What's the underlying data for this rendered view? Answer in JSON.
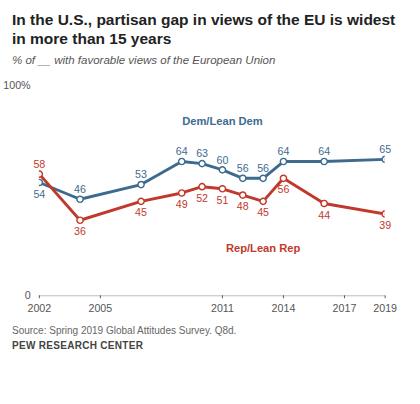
{
  "chart_data": {
    "type": "line",
    "title": "In the U.S., partisan gap in views of the EU is widest in more than 15 years",
    "subtitle": "% of __ with favorable views of the European Union",
    "source": "Source: Spring 2019 Global Attitudes Survey. Q8d.",
    "credit": "PEW RESEARCH CENTER",
    "x": [
      2002,
      2004,
      2007,
      2009,
      2010,
      2011,
      2012,
      2013,
      2014,
      2016,
      2019
    ],
    "series": [
      {
        "name": "Dem/Lean Dem",
        "color": "#3d6b8f",
        "marker": "circle",
        "values": [
          54,
          46,
          53,
          64,
          63,
          60,
          56,
          56,
          64,
          64,
          65
        ]
      },
      {
        "name": "Rep/Lean Rep",
        "color": "#c0392b",
        "marker": "circle",
        "values": [
          58,
          36,
          45,
          49,
          52,
          51,
          48,
          45,
          56,
          44,
          39
        ]
      }
    ],
    "xlim": [
      2002,
      2019
    ],
    "xticks": [
      2002,
      2005,
      2011,
      2014,
      2017,
      2019
    ],
    "ylim": [
      0,
      100
    ],
    "yticks": [
      0,
      {
        "value": 100,
        "label": "100%"
      }
    ],
    "data_labels": true,
    "grid": false
  }
}
